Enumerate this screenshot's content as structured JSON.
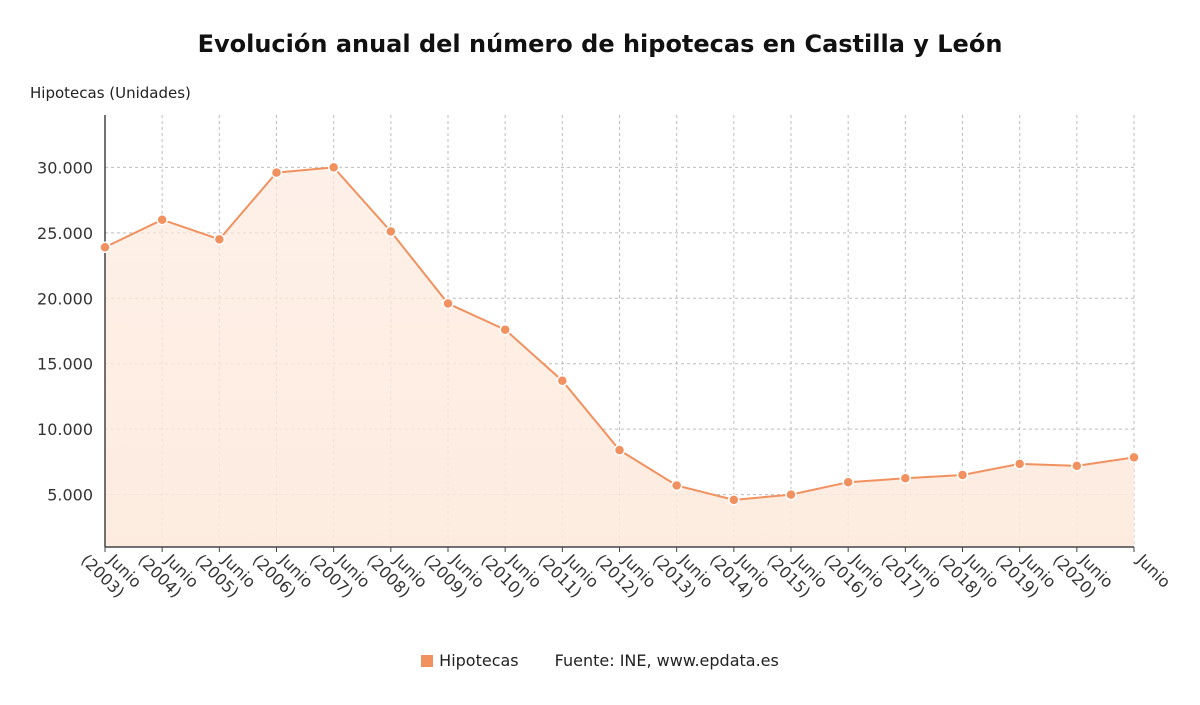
{
  "chart_data": {
    "type": "line",
    "title": "Evolución anual del número de hipotecas en Castilla y León",
    "ylabel": "Hipotecas (Unidades)",
    "xlabel": "",
    "categories": [
      "Junio (2003)",
      "Junio (2004)",
      "Junio (2005)",
      "Junio (2006)",
      "Junio (2007)",
      "Junio (2008)",
      "Junio (2009)",
      "Junio (2010)",
      "Junio (2011)",
      "Junio (2012)",
      "Junio (2013)",
      "Junio (2014)",
      "Junio (2015)",
      "Junio (2016)",
      "Junio (2017)",
      "Junio (2018)",
      "Junio (2019)",
      "Junio (2020)",
      "Junio"
    ],
    "series": [
      {
        "name": "Hipotecas",
        "color": "#f0915f",
        "values": [
          23900,
          26000,
          24500,
          29600,
          30000,
          25100,
          19600,
          17600,
          13700,
          8400,
          5700,
          4600,
          5000,
          5950,
          6250,
          6500,
          7350,
          7200,
          7850
        ]
      }
    ],
    "ylim": [
      1000,
      34000
    ],
    "yticks": [
      5000,
      10000,
      15000,
      20000,
      25000,
      30000
    ],
    "ytick_labels": [
      "5.000",
      "10.000",
      "15.000",
      "20.000",
      "25.000",
      "30.000"
    ],
    "grid": true,
    "legend": "bottom-center"
  },
  "legend": {
    "label": "Hipotecas",
    "source": "Fuente: INE, www.epdata.es"
  }
}
